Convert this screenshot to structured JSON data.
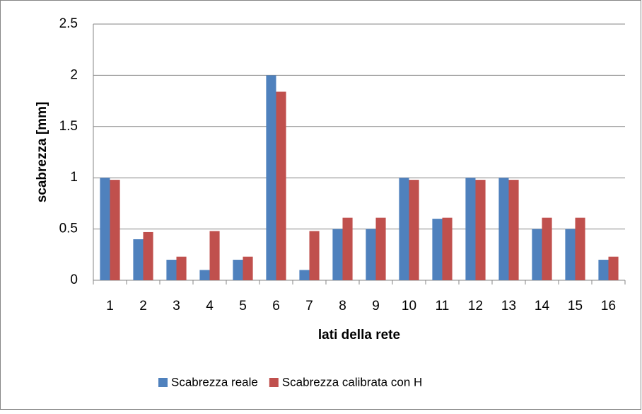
{
  "chart_data": {
    "type": "bar",
    "y_label": "scabrezza [mm]",
    "x_label": "lati della rete",
    "categories": [
      "1",
      "2",
      "3",
      "4",
      "5",
      "6",
      "7",
      "8",
      "9",
      "10",
      "11",
      "12",
      "13",
      "14",
      "15",
      "16"
    ],
    "series": [
      {
        "name": "Scabrezza reale",
        "color": "#4f81bd",
        "values": [
          1,
          0.4,
          0.2,
          0.1,
          0.2,
          2,
          0.1,
          0.5,
          0.5,
          1,
          0.6,
          1,
          1,
          0.5,
          0.5,
          0.2
        ]
      },
      {
        "name": "Scabrezza calibrata con H",
        "color": "#c0504d",
        "values": [
          0.98,
          0.47,
          0.23,
          0.48,
          0.23,
          1.84,
          0.48,
          0.61,
          0.61,
          0.98,
          0.61,
          0.98,
          0.98,
          0.61,
          0.61,
          0.23
        ]
      }
    ],
    "ylim": [
      0,
      2.5
    ],
    "yticks": [
      0,
      {
        "value": 0.5,
        "label": "0.5"
      },
      1,
      {
        "value": 1.5,
        "label": "1.5"
      },
      2,
      {
        "value": 2.5,
        "label": "2.5"
      }
    ],
    "grid": true,
    "legend": "bottom"
  }
}
